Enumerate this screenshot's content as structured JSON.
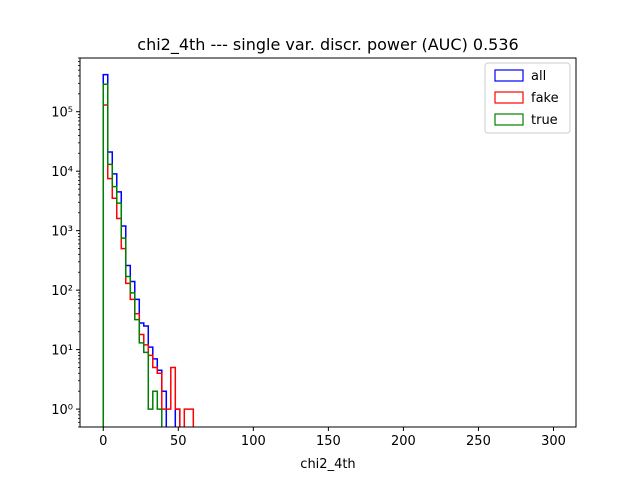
{
  "chart_data": {
    "type": "histogram-step",
    "title": "chi2_4th --- single var. discr. power (AUC) 0.536",
    "xlabel": "chi2_4th",
    "ylabel": "",
    "xlim": [
      -15.5,
      315
    ],
    "ylim": [
      0.5,
      800000
    ],
    "yscale": "log",
    "grid": false,
    "legend_position": "top-right",
    "bin_width": 3,
    "x_ticks": [
      0,
      50,
      100,
      150,
      200,
      250,
      300
    ],
    "y_ticks": [
      {
        "value": 1,
        "label": "10⁰"
      },
      {
        "value": 10,
        "label": "10¹"
      },
      {
        "value": 100,
        "label": "10²"
      },
      {
        "value": 1000,
        "label": "10³"
      },
      {
        "value": 10000,
        "label": "10⁴"
      },
      {
        "value": 100000,
        "label": "10⁵"
      }
    ],
    "series": [
      {
        "name": "all",
        "color": "#0000ff",
        "values": [
          420000,
          21000,
          9000,
          4500,
          1200,
          260,
          140,
          70,
          28,
          25,
          11,
          7,
          4.5,
          2,
          0,
          0,
          1,
          0,
          0,
          0,
          0
        ]
      },
      {
        "name": "fake",
        "color": "#ff0000",
        "values": [
          130000,
          7500,
          3500,
          1600,
          500,
          130,
          70,
          40,
          18,
          12,
          8,
          5,
          4,
          1,
          1,
          5,
          1,
          0,
          1,
          1,
          0
        ]
      },
      {
        "name": "true",
        "color": "#008000",
        "values": [
          290000,
          13000,
          5500,
          2900,
          750,
          170,
          90,
          32,
          13,
          9,
          1,
          2,
          1,
          0,
          0,
          0,
          0,
          0,
          0,
          0,
          0
        ]
      }
    ]
  }
}
